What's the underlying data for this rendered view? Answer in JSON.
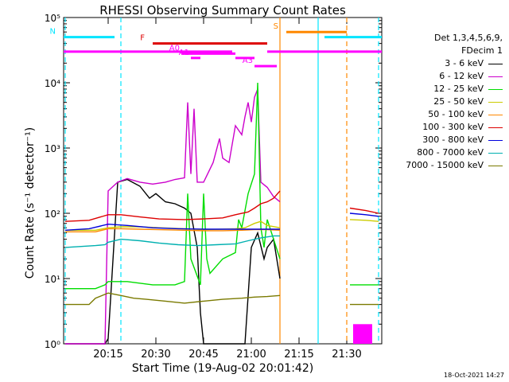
{
  "chart_data": {
    "type": "line",
    "title": "RHESSI Observing Summary Count Rates",
    "xlabel": "Start Time (19-Aug-02 20:01:42)",
    "ylabel": "Count Rate (s⁻¹ detector⁻¹)",
    "xlim": [
      0,
      100
    ],
    "ylim": [
      1,
      100000
    ],
    "yscale": "log",
    "xticks": [
      {
        "x": 14,
        "label": "20:15"
      },
      {
        "x": 29,
        "label": "20:30"
      },
      {
        "x": 44,
        "label": "20:45"
      },
      {
        "x": 59,
        "label": "21:00"
      },
      {
        "x": 74,
        "label": "21:15"
      },
      {
        "x": 89,
        "label": "21:30"
      }
    ],
    "yticks": [
      {
        "y": 1,
        "label": "10⁰"
      },
      {
        "y": 10,
        "label": "10¹"
      },
      {
        "y": 100,
        "label": "10²"
      },
      {
        "y": 1000,
        "label": "10³"
      },
      {
        "y": 10000,
        "label": "10⁴"
      },
      {
        "y": 100000,
        "label": "10⁵"
      }
    ],
    "legend_header": [
      "Det 1,3,4,5,6,9,",
      "FDecim 1"
    ],
    "series": [
      {
        "name": "3 - 6 keV",
        "color": "#000000",
        "x": [
          0.5,
          13,
          14,
          17,
          20,
          24,
          27,
          29,
          32,
          35,
          38,
          40,
          42,
          43,
          44,
          47,
          49,
          50,
          53,
          57,
          59,
          61,
          63,
          64,
          66,
          68
        ],
        "y": [
          1,
          1,
          1.2,
          300,
          330,
          260,
          170,
          200,
          150,
          140,
          120,
          100,
          30,
          3,
          1,
          1,
          1,
          1,
          1,
          1,
          30,
          50,
          20,
          30,
          40,
          10
        ]
      },
      {
        "name": "6 - 12 keV",
        "color": "#cc00cc",
        "x": [
          0.5,
          13,
          14,
          17,
          20,
          24,
          28,
          32,
          35,
          38,
          39,
          40,
          41,
          42,
          44,
          47,
          49,
          50,
          52,
          54,
          56,
          57,
          58,
          59,
          60,
          61,
          62,
          64,
          66,
          68
        ],
        "y": [
          1,
          1,
          220,
          300,
          340,
          300,
          280,
          300,
          330,
          350,
          5000,
          400,
          4000,
          300,
          300,
          600,
          1400,
          700,
          600,
          2200,
          1600,
          3000,
          5000,
          2500,
          6000,
          8000,
          300,
          250,
          180,
          150
        ]
      },
      {
        "name": "12 - 25 keV",
        "color": "#00dd00",
        "x": [
          0.5,
          10,
          13,
          14,
          20,
          28,
          35,
          38,
          39,
          40,
          43,
          44,
          45,
          46,
          50,
          54,
          55,
          56,
          58,
          60,
          61,
          62,
          63,
          64,
          66,
          68
        ],
        "y": [
          7,
          7,
          8,
          9,
          9,
          8,
          8,
          9,
          200,
          20,
          8,
          200,
          20,
          12,
          20,
          25,
          80,
          60,
          200,
          400,
          10000,
          60,
          30,
          80,
          40,
          20
        ]
      },
      {
        "name": "25 - 50 keV",
        "color": "#cccc00",
        "x": [
          0.5,
          10,
          14,
          18,
          24,
          30,
          38,
          44,
          50,
          54,
          57,
          60,
          62,
          64,
          68
        ],
        "y": [
          55,
          55,
          60,
          62,
          62,
          60,
          58,
          56,
          57,
          58,
          60,
          70,
          75,
          65,
          60
        ]
      },
      {
        "name": "50 - 100 keV",
        "color": "#ff8800",
        "x": [
          0.5,
          10,
          14,
          18,
          24,
          30,
          38,
          44,
          50,
          56,
          60,
          64,
          68
        ],
        "y": [
          52,
          52,
          58,
          58,
          57,
          56,
          55,
          54,
          54,
          55,
          56,
          56,
          55
        ]
      },
      {
        "name": "100 - 300 keV",
        "color": "#dd0000",
        "x": [
          0.5,
          8,
          14,
          18,
          24,
          30,
          38,
          44,
          50,
          54,
          58,
          60,
          62,
          64,
          66,
          68
        ],
        "y": [
          75,
          78,
          95,
          95,
          88,
          82,
          80,
          82,
          85,
          95,
          105,
          120,
          140,
          150,
          170,
          220
        ]
      },
      {
        "name": "300 - 800 keV",
        "color": "#0000dd",
        "x": [
          0.5,
          8,
          14,
          20,
          28,
          36,
          44,
          52,
          60,
          68
        ],
        "y": [
          55,
          58,
          68,
          65,
          60,
          58,
          57,
          57,
          57,
          57
        ]
      },
      {
        "name": "800 - 7000 keV",
        "color": "#00b0b0",
        "x": [
          0.5,
          10,
          13,
          14,
          18,
          24,
          30,
          36,
          42,
          48,
          54,
          58,
          62,
          66,
          68
        ],
        "y": [
          30,
          32,
          33,
          36,
          40,
          38,
          35,
          33,
          32,
          33,
          34,
          38,
          42,
          45,
          45
        ]
      },
      {
        "name": "7000 - 15000 keV",
        "color": "#7a7a00",
        "x": [
          0.5,
          8,
          10,
          14,
          18,
          22,
          26,
          32,
          38,
          44,
          50,
          56,
          60,
          64,
          68
        ],
        "y": [
          4,
          4,
          5,
          6,
          5.5,
          5,
          4.8,
          4.5,
          4.2,
          4.5,
          4.8,
          5,
          5.2,
          5.3,
          5.5
        ]
      }
    ],
    "late_series": [
      {
        "color": "#dd0000",
        "x": [
          90,
          95,
          99
        ],
        "y": [
          120,
          110,
          100
        ]
      },
      {
        "color": "#0000dd",
        "x": [
          90,
          95,
          99
        ],
        "y": [
          100,
          95,
          90
        ]
      },
      {
        "color": "#cccc00",
        "x": [
          90,
          95,
          99
        ],
        "y": [
          80,
          78,
          75
        ]
      },
      {
        "color": "#00dd00",
        "x": [
          90,
          95,
          99
        ],
        "y": [
          8,
          8,
          8
        ]
      },
      {
        "color": "#7a7a00",
        "x": [
          90,
          95,
          99
        ],
        "y": [
          4,
          4,
          4
        ]
      }
    ],
    "state_bars": [
      {
        "label": "N",
        "color": "#00e5ff",
        "segments": [
          [
            0,
            16
          ],
          [
            82,
            100
          ]
        ],
        "y": 50000
      },
      {
        "label": "S",
        "color": "#ff8800",
        "segments": [
          [
            70,
            89
          ]
        ],
        "y": 60000
      },
      {
        "label": "F",
        "color": "#dd0000",
        "segments": [
          [
            28,
            64
          ]
        ],
        "y": 40000
      },
      {
        "label": "",
        "color": "#ff00ff",
        "segments": [
          [
            0,
            53
          ],
          [
            64,
            100
          ]
        ],
        "y": 30000
      },
      {
        "label": "A0",
        "color": "#ff00ff",
        "segments": [
          [
            37,
            54
          ]
        ],
        "y": 28000
      },
      {
        "label": "A1",
        "color": "#ff00ff",
        "segments": [
          [
            40,
            43
          ],
          [
            54,
            60
          ]
        ],
        "y": 24000
      },
      {
        "label": "A3",
        "color": "#ff00ff",
        "segments": [
          [
            60,
            63
          ],
          [
            63,
            67
          ]
        ],
        "y": 18000
      }
    ],
    "vlines": [
      {
        "x": 18,
        "color": "#00e5ff",
        "dashed": true
      },
      {
        "x": 68,
        "color": "#ff8800",
        "dashed": false
      },
      {
        "x": 80,
        "color": "#00e5ff",
        "dashed": false
      },
      {
        "x": 89,
        "color": "#ff8800",
        "dashed": true
      },
      {
        "x": 99,
        "color": "#00e5ff",
        "dashed": true
      },
      {
        "x": 0.5,
        "color": "#00e5ff",
        "dashed": true
      }
    ],
    "blocks": [
      {
        "x0": 91,
        "x1": 97,
        "y0": 1,
        "y1": 2,
        "color": "#ff00ff"
      }
    ],
    "timestamp": "18-Oct-2021 14:27"
  }
}
